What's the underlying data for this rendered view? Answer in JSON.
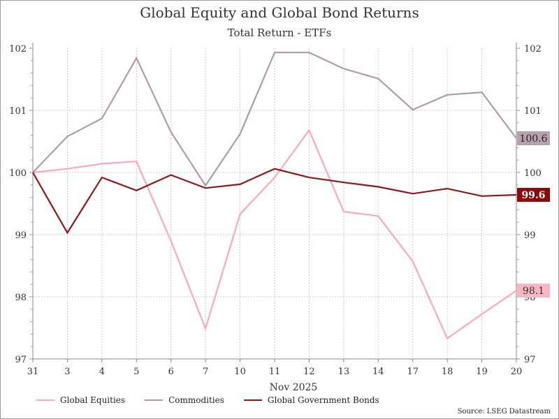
{
  "title": "Global Equity and Global Bond Returns",
  "subtitle": "Total Return - ETFs",
  "source": "Source: LSEG Datastream",
  "chart_data": {
    "type": "line",
    "title": "Global Equity and Global Bond Returns",
    "subtitle": "Total Return - ETFs",
    "categories": [
      "31",
      "3",
      "4",
      "5",
      "6",
      "7",
      "10",
      "11",
      "12",
      "13",
      "14",
      "17",
      "18",
      "19",
      "20"
    ],
    "xlabel": "Nov 2025",
    "ylabel": "",
    "ylim": [
      97,
      102
    ],
    "yticks": [
      97,
      98,
      99,
      100,
      101,
      102
    ],
    "grid": true,
    "legend_position": "bottom-left",
    "series": [
      {
        "name": "Global Equities",
        "color": "#f8a9bc",
        "label_bg": "#f8b6c4",
        "label_text_color": "#333333",
        "end_label": "98.1",
        "values": [
          100.0,
          100.06,
          100.14,
          100.18,
          98.9,
          97.49,
          99.33,
          99.92,
          100.68,
          99.37,
          99.3,
          98.57,
          97.33,
          97.72,
          98.1
        ]
      },
      {
        "name": "Commodities",
        "color": "#b09ba6",
        "label_bg": "#b6a2ad",
        "label_text_color": "#222222",
        "end_label": "100.6",
        "values": [
          100.0,
          100.58,
          100.87,
          101.84,
          100.65,
          99.79,
          100.62,
          101.93,
          101.93,
          101.67,
          101.51,
          101.01,
          101.25,
          101.29,
          100.55
        ]
      },
      {
        "name": "Global Government Bonds",
        "color": "#8b1a1a",
        "label_bg": "#8b0a0a",
        "label_text_color": "#ffffff",
        "end_label": "99.6",
        "values": [
          100.0,
          99.03,
          99.92,
          99.71,
          99.96,
          99.75,
          99.81,
          100.06,
          99.92,
          99.84,
          99.77,
          99.66,
          99.74,
          99.62,
          99.64
        ]
      }
    ]
  }
}
